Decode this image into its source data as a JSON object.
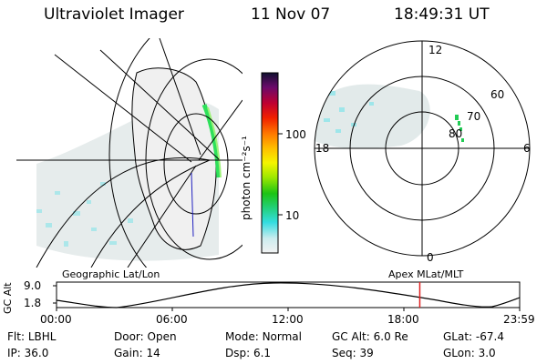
{
  "header": {
    "instrument": "Ultraviolet Imager",
    "date": "11 Nov 07",
    "time": "18:49:31 UT"
  },
  "colorbar": {
    "unit_label": "photon cm⁻²s⁻¹",
    "ticks": [
      "100",
      "10"
    ]
  },
  "polar": {
    "labels": {
      "top": "12",
      "left": "18",
      "right": "6",
      "bottom": "0"
    },
    "rings": [
      "60",
      "70",
      "80"
    ]
  },
  "projections": {
    "left": "Geographic Lat/Lon",
    "right": "Apex MLat/MLT"
  },
  "altitude": {
    "axis_label": "GC Alt",
    "ticks": [
      "9.0",
      "1.8"
    ],
    "time_ticks": [
      "00:00",
      "06:00",
      "12:00",
      "18:00",
      "23:59"
    ],
    "marker_hour": 18.825
  },
  "status": {
    "row1": [
      {
        "label": "Flt:",
        "value": "LBHL"
      },
      {
        "label": "Door:",
        "value": "Open"
      },
      {
        "label": "Mode:",
        "value": "Normal"
      },
      {
        "label": "GC Alt:",
        "value": "6.0 Re"
      },
      {
        "label": "GLat:",
        "value": "-67.4"
      }
    ],
    "row2": [
      {
        "label": "IP:",
        "value": "36.0"
      },
      {
        "label": "Gain:",
        "value": "14"
      },
      {
        "label": "Dsp:",
        "value": "6.1"
      },
      {
        "label": "Seq:",
        "value": "39"
      },
      {
        "label": "GLon:",
        "value": "3.0"
      }
    ]
  }
}
